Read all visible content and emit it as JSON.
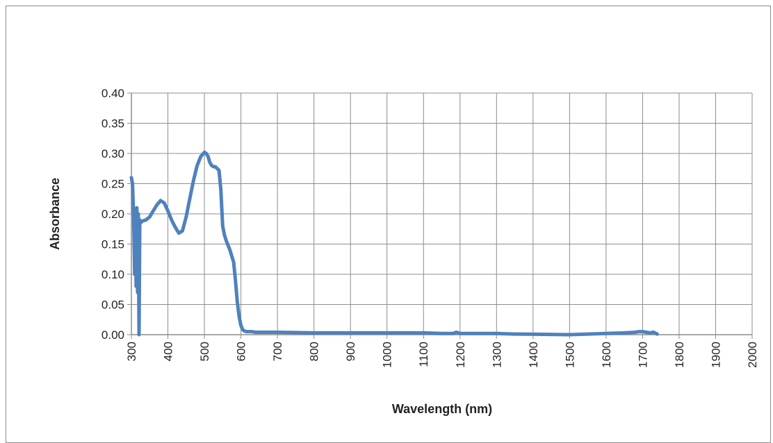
{
  "chart_data": {
    "type": "line",
    "title": "",
    "xlabel": "Wavelength (nm)",
    "ylabel": "Absorbance",
    "xlim": [
      300,
      2000
    ],
    "ylim": [
      0,
      0.4
    ],
    "x_ticks": [
      300,
      400,
      500,
      600,
      700,
      800,
      900,
      1000,
      1100,
      1200,
      1300,
      1400,
      1500,
      1600,
      1700,
      1800,
      1900,
      2000
    ],
    "x_tick_labels": [
      "300",
      "400",
      "500",
      "600",
      "700",
      "800",
      "900",
      "1000",
      "1100",
      "1200",
      "1300",
      "1400",
      "1500",
      "1600",
      "1700",
      "1800",
      "1900",
      "2000"
    ],
    "y_ticks": [
      0,
      0.05,
      0.1,
      0.15,
      0.2,
      0.25,
      0.3,
      0.35,
      0.4
    ],
    "y_tick_labels": [
      "0.00",
      "0.05",
      "0.10",
      "0.15",
      "0.20",
      "0.25",
      "0.30",
      "0.35",
      "0.40"
    ],
    "grid": true,
    "legend": "none",
    "colors": {
      "series": "#4f81bd",
      "grid": "#8c8c8c",
      "axis": "#8c8c8c",
      "frame": "#8c8c8c"
    },
    "series": [
      {
        "x": [
          300,
          303,
          306,
          309,
          311,
          313,
          315,
          317,
          319,
          321,
          323,
          325,
          330,
          340,
          350,
          360,
          370,
          380,
          390,
          400,
          410,
          420,
          430,
          440,
          450,
          460,
          470,
          480,
          490,
          500,
          505,
          510,
          515,
          520,
          525,
          530,
          540,
          545,
          550,
          555,
          560,
          570,
          580,
          585,
          590,
          595,
          600,
          605,
          610,
          615,
          620,
          630,
          640,
          660,
          700,
          800,
          900,
          1000,
          1100,
          1150,
          1180,
          1190,
          1200,
          1250,
          1300,
          1350,
          1360,
          1500,
          1550,
          1600,
          1650,
          1680,
          1690,
          1700,
          1710,
          1720,
          1730,
          1740
        ],
        "y": [
          0.26,
          0.25,
          0.2,
          0.1,
          0.2,
          0.08,
          0.21,
          0.07,
          0.2,
          0.0,
          0.19,
          0.185,
          0.188,
          0.19,
          0.195,
          0.205,
          0.215,
          0.222,
          0.218,
          0.205,
          0.19,
          0.178,
          0.168,
          0.172,
          0.195,
          0.225,
          0.255,
          0.28,
          0.295,
          0.302,
          0.3,
          0.295,
          0.285,
          0.28,
          0.278,
          0.278,
          0.272,
          0.24,
          0.18,
          0.165,
          0.155,
          0.14,
          0.12,
          0.09,
          0.055,
          0.03,
          0.015,
          0.008,
          0.006,
          0.005,
          0.005,
          0.005,
          0.004,
          0.004,
          0.004,
          0.003,
          0.003,
          0.003,
          0.003,
          0.002,
          0.002,
          0.004,
          0.002,
          0.002,
          0.002,
          0.001,
          0.001,
          0.0,
          0.001,
          0.002,
          0.003,
          0.004,
          0.005,
          0.005,
          0.004,
          0.003,
          0.004,
          0.001
        ]
      }
    ]
  }
}
